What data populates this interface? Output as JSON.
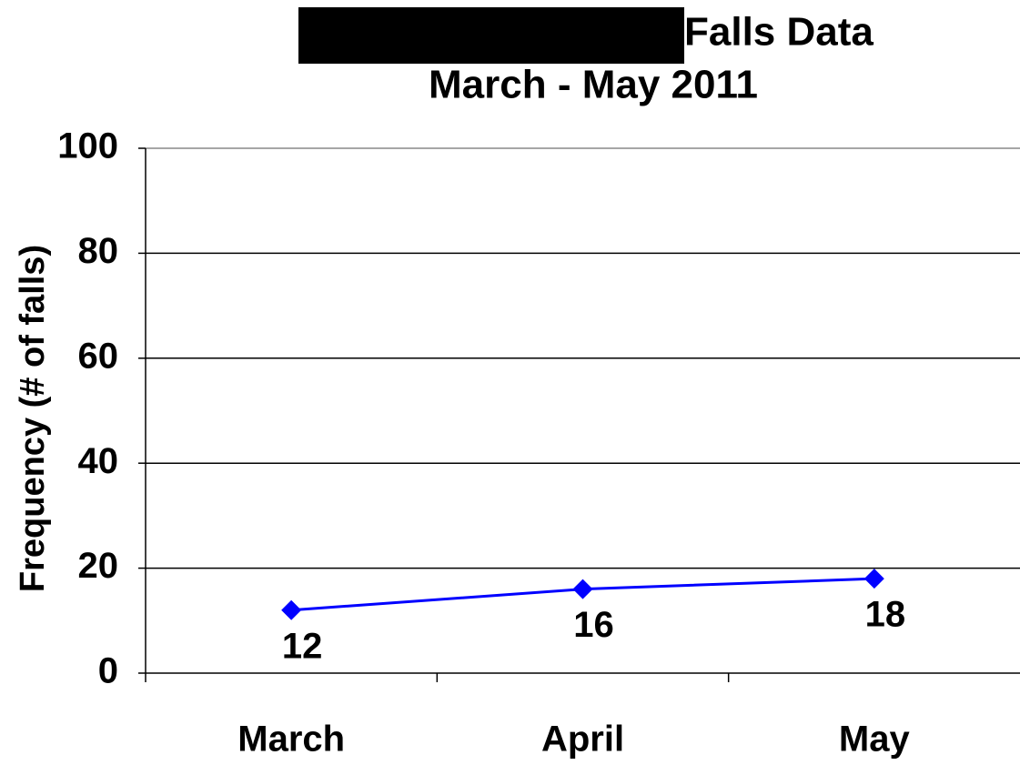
{
  "chart_data": {
    "type": "line",
    "title": "Falls Data",
    "subtitle": "March - May 2011",
    "y_label": "Frequency (# of falls)",
    "categories": [
      "March",
      "April",
      "May"
    ],
    "series": [
      {
        "name": "Falls",
        "color": "#0000ff",
        "values": [
          12,
          16,
          18
        ]
      }
    ],
    "ylim": [
      0,
      100
    ],
    "yticks": [
      0,
      20,
      40,
      60,
      80,
      100
    ],
    "grid": true
  }
}
